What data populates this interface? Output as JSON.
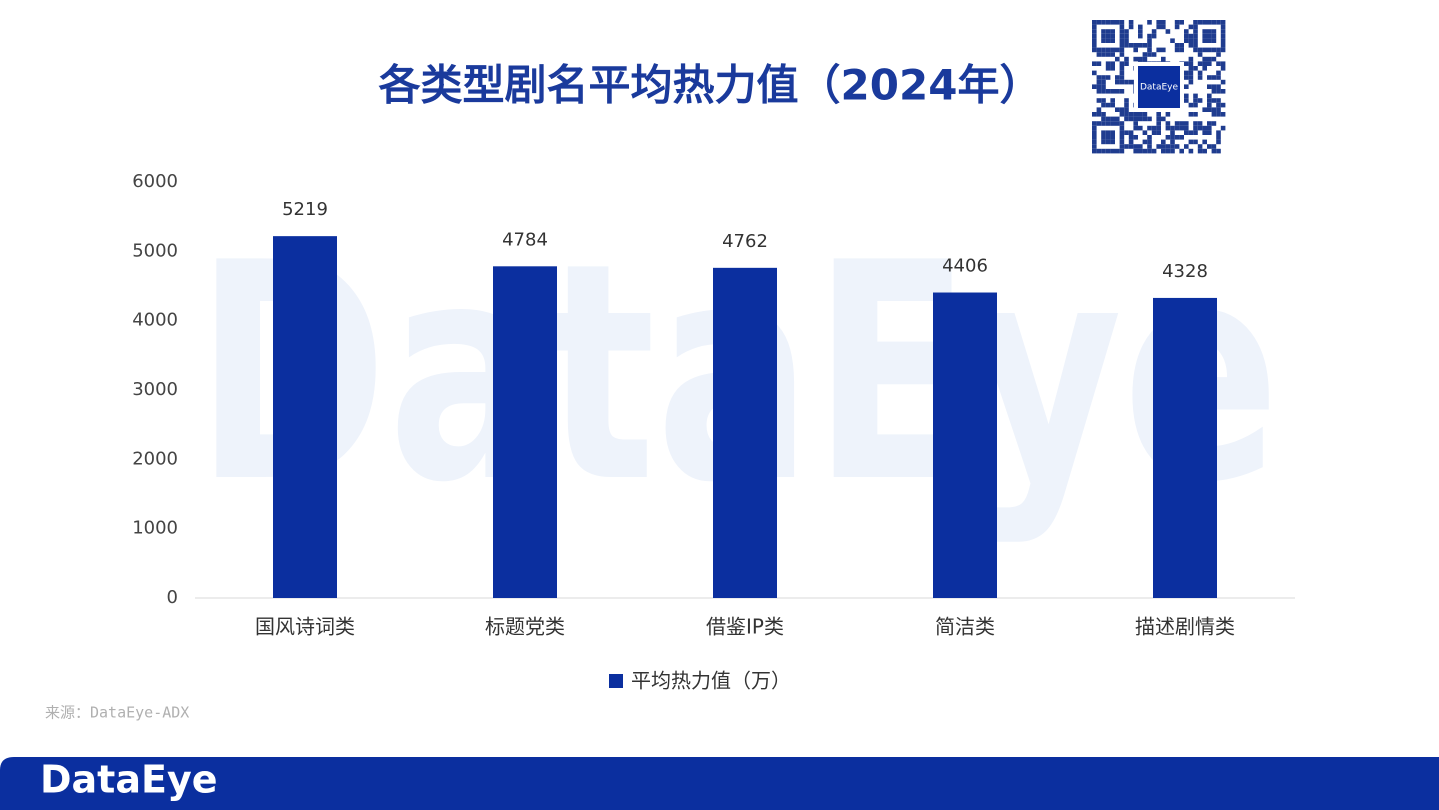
{
  "chart_data": {
    "type": "bar",
    "title": "各类型剧名平均热力值（2024年）",
    "categories": [
      "国风诗词类",
      "标题党类",
      "借鉴IP类",
      "简洁类",
      "描述剧情类"
    ],
    "series": [
      {
        "name": "平均热力值（万）",
        "color": "#0b2f9f",
        "values": [
          5219,
          4784,
          4762,
          4406,
          4328
        ]
      }
    ],
    "ylim": [
      0,
      6000
    ],
    "yticks": [
      0,
      1000,
      2000,
      3000,
      4000,
      5000,
      6000
    ],
    "grid": false,
    "data_labels": true,
    "legend": "bottom",
    "source": "来源：DataEye-ADX",
    "brand": "DataEye"
  }
}
